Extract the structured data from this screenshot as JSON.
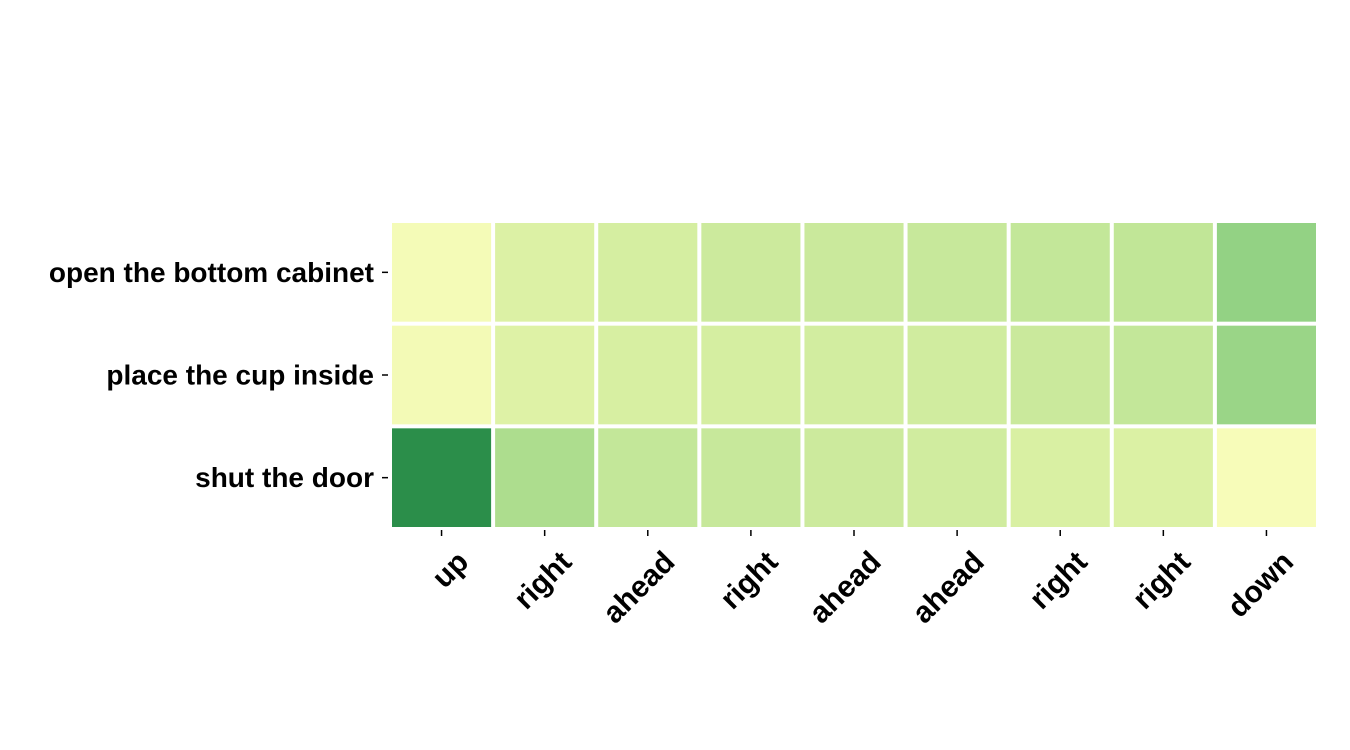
{
  "chart_data": {
    "type": "heatmap",
    "rows": [
      "open the bottom cabinet",
      "place the cup inside",
      "shut the door"
    ],
    "columns": [
      "up",
      "right",
      "ahead",
      "right",
      "ahead",
      "ahead",
      "right",
      "right",
      "down"
    ],
    "values": [
      [
        0.02,
        0.18,
        0.22,
        0.26,
        0.27,
        0.28,
        0.3,
        0.31,
        0.5
      ],
      [
        0.03,
        0.17,
        0.21,
        0.22,
        0.23,
        0.24,
        0.27,
        0.3,
        0.47
      ],
      [
        0.95,
        0.4,
        0.3,
        0.28,
        0.26,
        0.24,
        0.2,
        0.19,
        0.0
      ]
    ],
    "colorscale": "YlGn",
    "colorbar": false,
    "grid": false,
    "cell_border_color": "#ffffff"
  }
}
